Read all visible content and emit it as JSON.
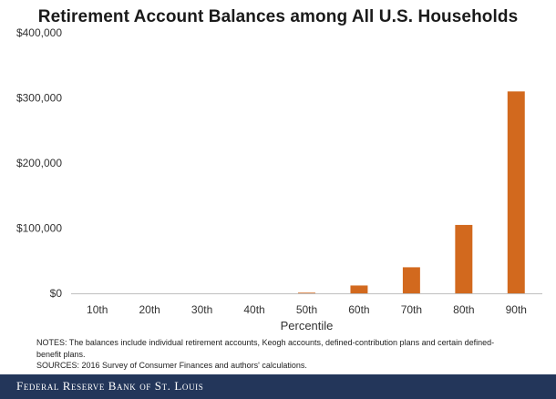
{
  "chart_data": {
    "type": "bar",
    "title": "Retirement Account Balances among All U.S. Households",
    "xlabel": "Percentile",
    "ylabel": "",
    "categories": [
      "10th",
      "20th",
      "30th",
      "40th",
      "50th",
      "60th",
      "70th",
      "80th",
      "90th"
    ],
    "values": [
      0,
      0,
      0,
      0,
      1000,
      12000,
      40000,
      105000,
      310000
    ],
    "ylim": [
      0,
      400000
    ],
    "yticks": [
      0,
      100000,
      200000,
      300000,
      400000
    ],
    "ytick_labels": [
      "$0",
      "$100,000",
      "$200,000",
      "$300,000",
      "$400,000"
    ],
    "bar_color": "#d2691e",
    "grid": false,
    "legend": "none"
  },
  "notes": {
    "line1": "NOTES: The balances include individual retirement accounts, Keogh accounts, defined-contribution  plans and certain defined-",
    "line2": "benefit plans.",
    "line3": "SOURCES: 2016 Survey of Consumer Finances and authors' calculations."
  },
  "footer": {
    "text": "Federal Reserve Bank of St. Louis",
    "background": "#23365a"
  }
}
